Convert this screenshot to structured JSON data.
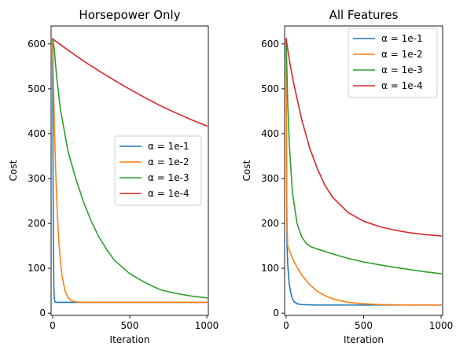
{
  "chart_data": [
    {
      "type": "line",
      "title": "Horsepower Only",
      "xlabel": "Iteration",
      "ylabel": "Cost",
      "xlim": [
        -10,
        1010
      ],
      "ylim": [
        -5,
        640
      ],
      "xticks": [
        0,
        500,
        1000
      ],
      "yticks": [
        0,
        100,
        200,
        300,
        400,
        500,
        600
      ],
      "grid": false,
      "legend_position": "center-right",
      "series": [
        {
          "name": "α = 1e-1",
          "color": "#1f77b4",
          "x": [
            0,
            1,
            2,
            3,
            4,
            5,
            6,
            8,
            10,
            15,
            20,
            30,
            50,
            100,
            200,
            500,
            1000
          ],
          "y": [
            611,
            480,
            370,
            280,
            210,
            150,
            110,
            60,
            35,
            25,
            24,
            24,
            24,
            24,
            24,
            24,
            24
          ]
        },
        {
          "name": "α = 1e-2",
          "color": "#ff7f0e",
          "x": [
            0,
            5,
            10,
            15,
            20,
            30,
            40,
            50,
            60,
            80,
            100,
            120,
            150,
            200,
            300,
            500,
            1000
          ],
          "y": [
            611,
            520,
            440,
            370,
            315,
            225,
            160,
            118,
            85,
            50,
            35,
            28,
            25,
            24,
            24,
            24,
            24
          ]
        },
        {
          "name": "α = 1e-3",
          "color": "#2ca02c",
          "x": [
            0,
            10,
            25,
            50,
            100,
            150,
            200,
            250,
            300,
            350,
            400,
            500,
            600,
            700,
            800,
            900,
            1000
          ],
          "y": [
            611,
            590,
            530,
            455,
            360,
            300,
            248,
            205,
            170,
            142,
            118,
            88,
            68,
            52,
            44,
            38,
            34
          ]
        },
        {
          "name": "α = 1e-4",
          "color": "#d62728",
          "x": [
            0,
            100,
            200,
            300,
            400,
            500,
            600,
            700,
            800,
            900,
            1000
          ],
          "y": [
            611,
            586,
            562,
            540,
            519,
            499,
            480,
            462,
            446,
            431,
            417
          ]
        }
      ]
    },
    {
      "type": "line",
      "title": "All Features",
      "xlabel": "Iteration",
      "ylabel": "Cost",
      "xlim": [
        -10,
        1010
      ],
      "ylim": [
        -5,
        640
      ],
      "xticks": [
        0,
        500,
        1000
      ],
      "yticks": [
        0,
        100,
        200,
        300,
        400,
        500,
        600
      ],
      "grid": false,
      "legend_position": "top-right",
      "series": [
        {
          "name": "α = 1e-1",
          "color": "#1f77b4",
          "x": [
            0,
            1,
            2,
            4,
            6,
            10,
            15,
            20,
            30,
            40,
            50,
            70,
            100,
            200,
            500,
            1000
          ],
          "y": [
            611,
            500,
            380,
            230,
            150,
            110,
            85,
            65,
            45,
            32,
            26,
            21,
            19,
            18,
            18,
            18
          ]
        },
        {
          "name": "α = 1e-2",
          "color": "#ff7f0e",
          "x": [
            0,
            2,
            5,
            10,
            20,
            50,
            100,
            150,
            200,
            250,
            300,
            400,
            500,
            600,
            800,
            1000
          ],
          "y": [
            611,
            400,
            200,
            150,
            140,
            115,
            85,
            64,
            49,
            39,
            32,
            24,
            21,
            19,
            18,
            18
          ]
        },
        {
          "name": "α = 1e-3",
          "color": "#2ca02c",
          "x": [
            0,
            5,
            10,
            20,
            40,
            70,
            100,
            130,
            160,
            200,
            300,
            400,
            500,
            600,
            700,
            800,
            900,
            1000
          ],
          "y": [
            611,
            540,
            470,
            380,
            270,
            200,
            170,
            155,
            148,
            143,
            132,
            122,
            114,
            108,
            102,
            97,
            92,
            88
          ]
        },
        {
          "name": "α = 1e-4",
          "color": "#d62728",
          "x": [
            0,
            25,
            50,
            100,
            150,
            200,
            250,
            300,
            400,
            500,
            600,
            700,
            800,
            900,
            1000
          ],
          "y": [
            611,
            555,
            510,
            432,
            370,
            323,
            285,
            258,
            224,
            205,
            193,
            185,
            179,
            175,
            172
          ]
        }
      ]
    }
  ]
}
